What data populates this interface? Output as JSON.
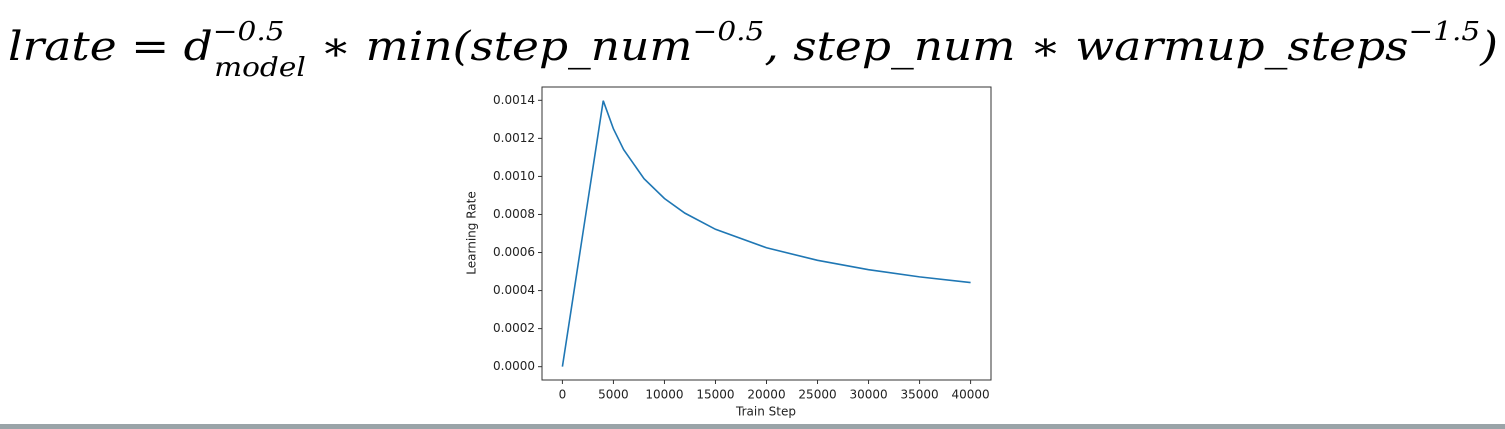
{
  "formula": {
    "base": [
      "lrate = d",
      " ∗ min(step_num",
      ", step_num ∗ warmup_steps",
      ")"
    ],
    "sub": "model",
    "sup": [
      "−0.5",
      "−0.5",
      "−1.5"
    ]
  },
  "chart_data": {
    "type": "line",
    "x_label": "Train Step",
    "y_label": "Learning Rate",
    "x": [
      0,
      1000,
      2000,
      3000,
      4000,
      5000,
      6000,
      8000,
      10000,
      12000,
      15000,
      20000,
      25000,
      30000,
      35000,
      40000
    ],
    "series": [
      {
        "color": "#1f77b4",
        "values": [
          0,
          0.000349,
          0.000699,
          0.001048,
          0.001398,
          0.00125,
          0.001141,
          0.000988,
          0.000884,
          0.000807,
          0.000722,
          0.000625,
          0.000559,
          0.00051,
          0.000472,
          0.000442
        ]
      }
    ],
    "xlim": [
      -2000,
      42000
    ],
    "xticks": [
      0,
      5000,
      10000,
      15000,
      20000,
      25000,
      30000,
      35000,
      40000
    ],
    "ylim": [
      -7e-05,
      0.00147
    ],
    "yticks": [
      {
        "value": 0,
        "label": "0.0000"
      },
      {
        "value": 0.0002,
        "label": "0.0002"
      },
      {
        "value": 0.0004,
        "label": "0.0004"
      },
      {
        "value": 0.0006,
        "label": "0.0006"
      },
      {
        "value": 0.0008,
        "label": "0.0008"
      },
      {
        "value": 0.001,
        "label": "0.0010"
      },
      {
        "value": 0.0012,
        "label": "0.0012"
      },
      {
        "value": 0.0014,
        "label": "0.0014"
      }
    ]
  }
}
